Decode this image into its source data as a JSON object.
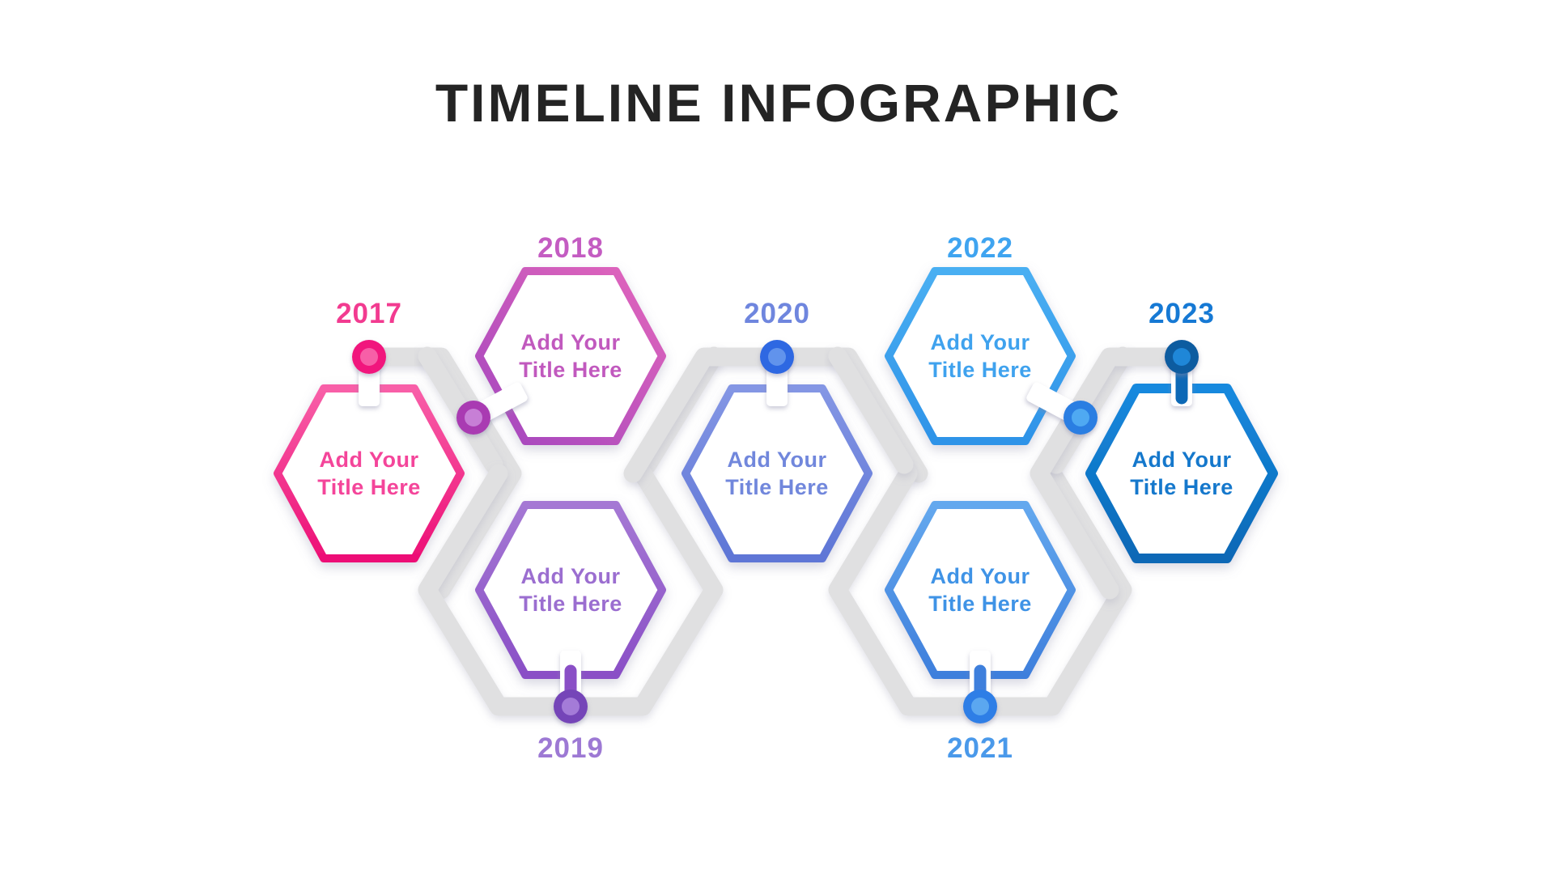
{
  "title": "TIMELINE INFOGRAPHIC",
  "background": "#ffffff",
  "track_color": "#e0e0e1",
  "title_color": "#242424",
  "items": [
    {
      "year": "2017",
      "title_line1": "Add Your",
      "title_line2": "Title Here",
      "border_from": "#f85fa8",
      "border_to": "#ed0f76",
      "text_color": "#f4459a",
      "label_color": "#f23b90",
      "dot_outer": "#f1127d",
      "dot_inner": "#f75fa7"
    },
    {
      "year": "2018",
      "title_line1": "Add Your",
      "title_line2": "Title Here",
      "border_from": "#de64bc",
      "border_to": "#a849be",
      "text_color": "#c159be",
      "label_color": "#c45cc2",
      "dot_outer": "#a93bb2",
      "dot_inner": "#c77fd6"
    },
    {
      "year": "2019",
      "title_line1": "Add Your",
      "title_line2": "Title Here",
      "border_from": "#a578d4",
      "border_to": "#8a4fc6",
      "text_color": "#9b6ed0",
      "label_color": "#9d79d4",
      "dot_outer": "#7544b8",
      "dot_inner": "#a47bd8"
    },
    {
      "year": "2020",
      "title_line1": "Add Your",
      "title_line2": "Title Here",
      "border_from": "#8496e4",
      "border_to": "#5e76d6",
      "text_color": "#7187dc",
      "label_color": "#6f86de",
      "dot_outer": "#2d68e2",
      "dot_inner": "#6193ec"
    },
    {
      "year": "2021",
      "title_line1": "Add Your",
      "title_line2": "Title Here",
      "border_from": "#64a8ee",
      "border_to": "#3e7fdc",
      "text_color": "#3f93e6",
      "label_color": "#4a99ea",
      "dot_outer": "#2e7ee6",
      "dot_inner": "#5ba7f0"
    },
    {
      "year": "2022",
      "title_line1": "Add Your",
      "title_line2": "Title Here",
      "border_from": "#4aaff2",
      "border_to": "#2e93e8",
      "text_color": "#3fa2ee",
      "label_color": "#3fa4f0",
      "dot_outer": "#2c7ee2",
      "dot_inner": "#4fa9f2"
    },
    {
      "year": "2023",
      "title_line1": "Add Your",
      "title_line2": "Title Here",
      "border_from": "#1589de",
      "border_to": "#0c68b6",
      "text_color": "#1578cc",
      "label_color": "#1679d4",
      "dot_outer": "#0d5ca0",
      "dot_inner": "#1f87d8"
    }
  ]
}
